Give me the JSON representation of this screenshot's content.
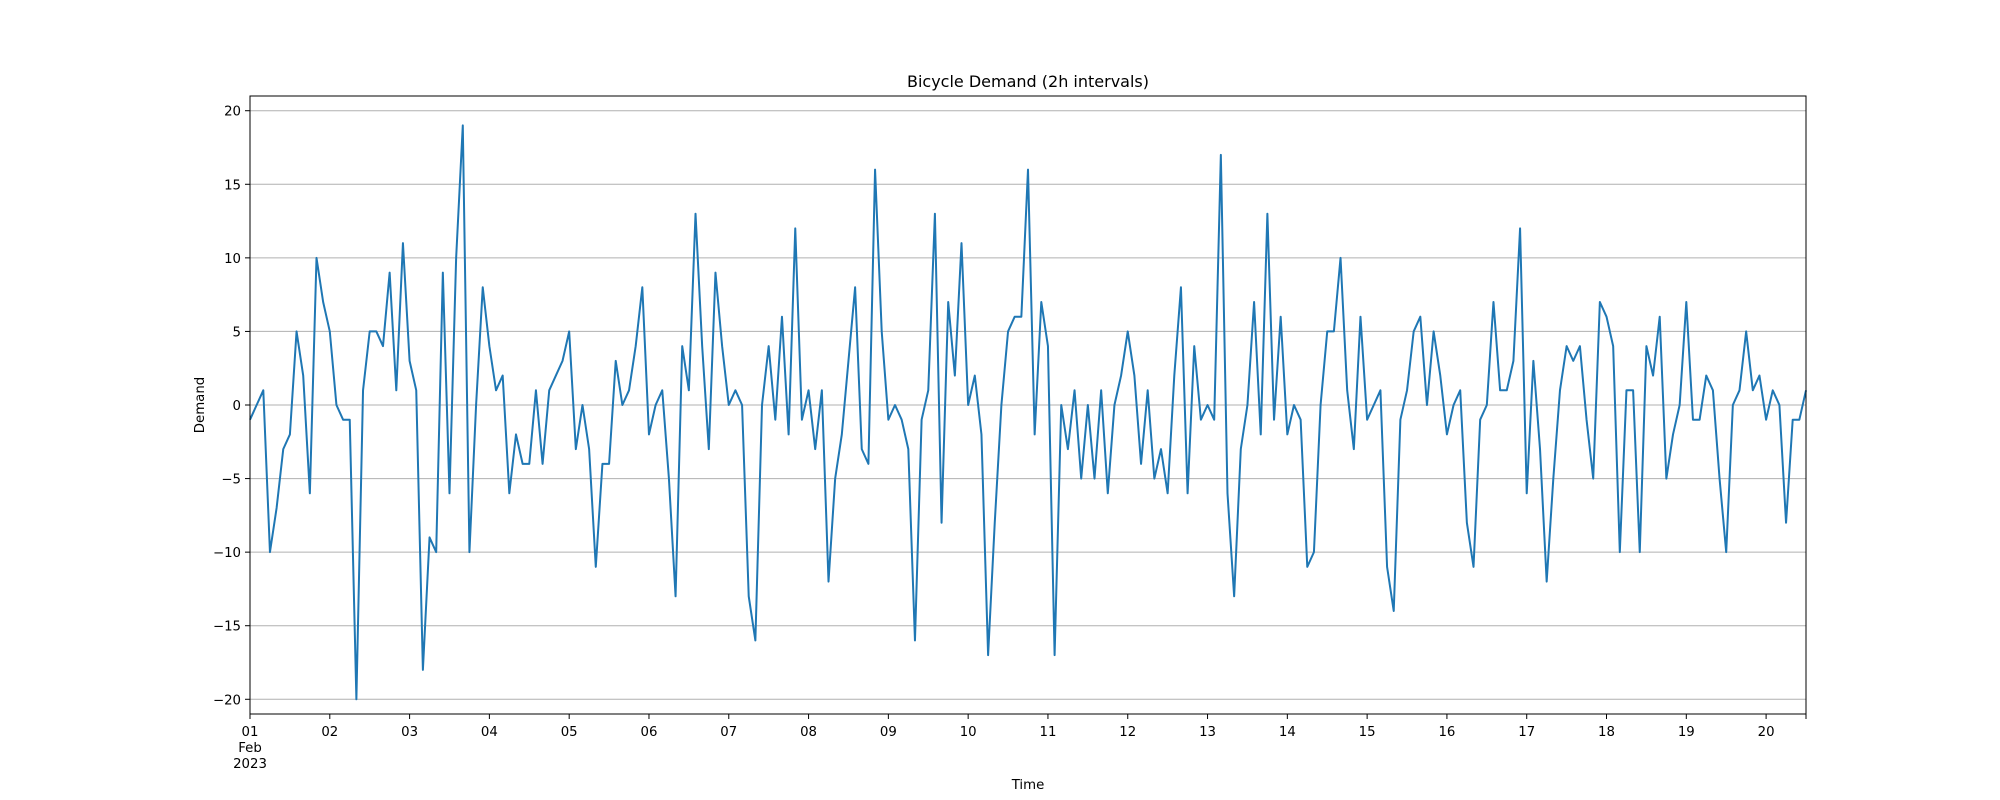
{
  "chart_data": {
    "type": "line",
    "title": "Bicycle Demand (2h intervals)",
    "xlabel": "Time",
    "ylabel": "Demand",
    "x_start": "2023-02-01 00:00",
    "x_end": "2023-02-20 12:00",
    "x_interval": "2h",
    "ylim": [
      -21,
      21
    ],
    "yticks": [
      -20,
      -15,
      -10,
      -5,
      0,
      5,
      10,
      15,
      20
    ],
    "xtick_labels": [
      [
        "01",
        "Feb",
        "2023"
      ],
      [
        "02"
      ],
      [
        "03"
      ],
      [
        "04"
      ],
      [
        "05"
      ],
      [
        "06"
      ],
      [
        "07"
      ],
      [
        "08"
      ],
      [
        "09"
      ],
      [
        "10"
      ],
      [
        "11"
      ],
      [
        "12"
      ],
      [
        "13"
      ],
      [
        "14"
      ],
      [
        "15"
      ],
      [
        "16"
      ],
      [
        "17"
      ],
      [
        "18"
      ],
      [
        "19"
      ],
      [
        "20"
      ]
    ],
    "grid": "horizontal",
    "series": [
      {
        "color": "#1f77b4",
        "values": [
          -1,
          0,
          1,
          -10,
          -7,
          -3,
          -2,
          5,
          2,
          -6,
          10,
          7,
          5,
          0,
          -1,
          -1,
          -20,
          1,
          5,
          5,
          4,
          9,
          1,
          11,
          3,
          1,
          -18,
          -9,
          -10,
          9,
          -6,
          10,
          19,
          -10,
          0,
          8,
          4,
          1,
          2,
          -6,
          -2,
          -4,
          -4,
          1,
          -4,
          1,
          2,
          3,
          5,
          -3,
          0,
          -3,
          -11,
          -4,
          -4,
          3,
          0,
          1,
          4,
          8,
          -2,
          0,
          1,
          -5,
          -13,
          4,
          1,
          13,
          4,
          -3,
          9,
          4,
          0,
          1,
          0,
          -13,
          -16,
          0,
          4,
          -1,
          6,
          -2,
          12,
          -1,
          1,
          -3,
          1,
          -12,
          -5,
          -2,
          3,
          8,
          -3,
          -4,
          16,
          5,
          -1,
          0,
          -1,
          -3,
          -16,
          -1,
          1,
          13,
          -8,
          7,
          2,
          11,
          0,
          2,
          -2,
          -17,
          -8,
          0,
          5,
          6,
          6,
          16,
          -2,
          7,
          4,
          -17,
          0,
          -3,
          1,
          -5,
          0,
          -5,
          1,
          -6,
          0,
          2,
          5,
          2,
          -4,
          1,
          -5,
          -3,
          -6,
          2,
          8,
          -6,
          4,
          -1,
          0,
          -1,
          17,
          -6,
          -13,
          -3,
          0,
          7,
          -2,
          13,
          -1,
          6,
          -2,
          0,
          -1,
          -11,
          -10,
          0,
          5,
          5,
          10,
          1,
          -3,
          6,
          -1,
          0,
          1,
          -11,
          -14,
          -1,
          1,
          5,
          6,
          0,
          5,
          2,
          -2,
          0,
          1,
          -8,
          -11,
          -1,
          0,
          7,
          1,
          1,
          3,
          12,
          -6,
          3,
          -3,
          -12,
          -5,
          1,
          4,
          3,
          4,
          -1,
          -5,
          7,
          6,
          4,
          -10,
          1,
          1,
          -10,
          4,
          2,
          6,
          -5,
          -2,
          0,
          7,
          -1,
          -1,
          2,
          1,
          -5,
          -10,
          0,
          1,
          5,
          1,
          2,
          -1,
          1,
          0,
          -8,
          -1,
          -1,
          1
        ]
      }
    ]
  }
}
